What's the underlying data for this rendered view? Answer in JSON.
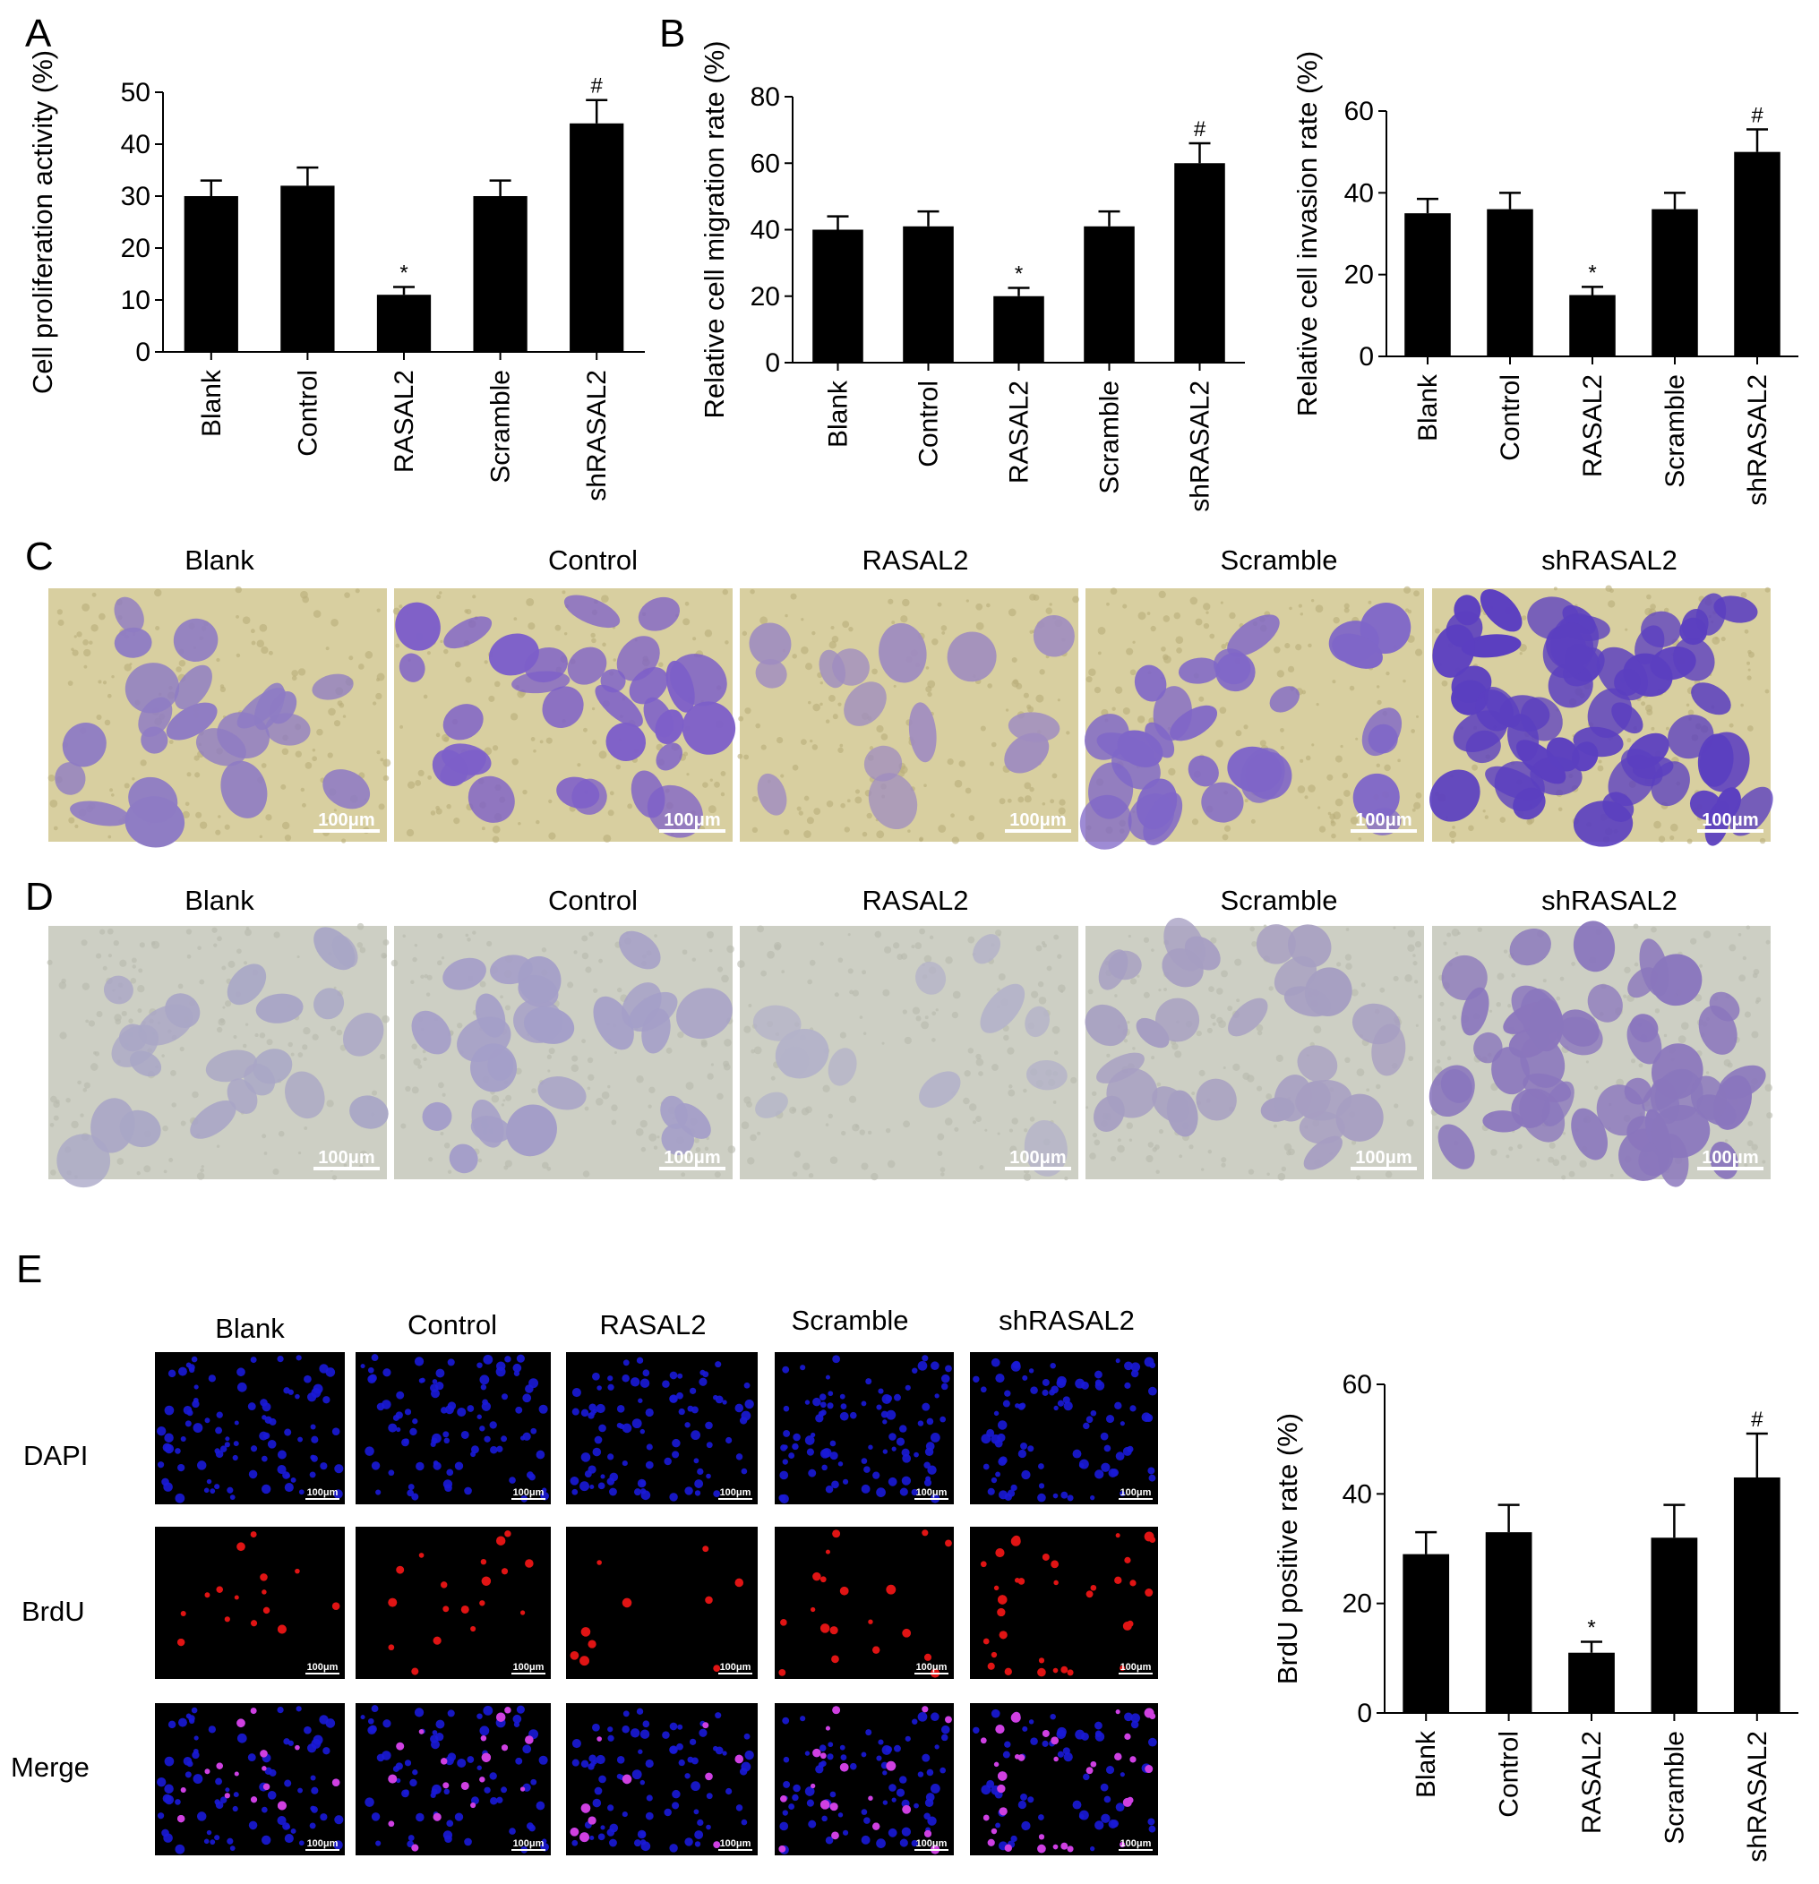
{
  "panels": {
    "A": "A",
    "B": "B",
    "C": "C",
    "D": "D",
    "E": "E"
  },
  "groups": [
    "Blank",
    "Control",
    "RASAL2",
    "Scramble",
    "shRASAL2"
  ],
  "scale_bar": "100μm",
  "micro": {
    "C": {
      "colors": [
        "#8e7bc4",
        "#7d5fc9",
        "#9f8cc0",
        "#7f66c8",
        "#5b3fc0"
      ],
      "bg": "#d8cfa0"
    },
    "D": {
      "colors": [
        "#a9a6c6",
        "#a49ec8",
        "#b4b3c9",
        "#a69ec2",
        "#8a76bd"
      ],
      "bg": "#cdcfc4"
    }
  },
  "panelE": {
    "row_labels": [
      "DAPI",
      "BrdU",
      "Merge"
    ],
    "colors": {
      "dapi": "#1a1ad8",
      "brdu": "#e01414",
      "merge": "#d040e0"
    }
  },
  "chart_data": [
    {
      "id": "A",
      "type": "bar",
      "categories": [
        "Blank",
        "Control",
        "RASAL2",
        "Scramble",
        "shRASAL2"
      ],
      "values": [
        30,
        32,
        11,
        30,
        44
      ],
      "errors": [
        3,
        3.5,
        1.5,
        3,
        4.5
      ],
      "annotations": [
        "",
        "",
        "*",
        "",
        "#"
      ],
      "ylabel": "Cell proliferation activity (%)",
      "ylim": [
        0,
        50
      ],
      "yticks": [
        0,
        10,
        20,
        30,
        40,
        50
      ],
      "bar_color": "#000000"
    },
    {
      "id": "B1",
      "type": "bar",
      "categories": [
        "Blank",
        "Control",
        "RASAL2",
        "Scramble",
        "shRASAL2"
      ],
      "values": [
        40,
        41,
        20,
        41,
        60
      ],
      "errors": [
        4,
        4.5,
        2.5,
        4.5,
        6
      ],
      "annotations": [
        "",
        "",
        "*",
        "",
        "#"
      ],
      "ylabel": "Relative cell migration rate (%)",
      "ylim": [
        0,
        80
      ],
      "yticks": [
        0,
        20,
        40,
        60,
        80
      ],
      "bar_color": "#000000"
    },
    {
      "id": "B2",
      "type": "bar",
      "categories": [
        "Blank",
        "Control",
        "RASAL2",
        "Scramble",
        "shRASAL2"
      ],
      "values": [
        35,
        36,
        15,
        36,
        50
      ],
      "errors": [
        3.5,
        4,
        2,
        4,
        5.5
      ],
      "annotations": [
        "",
        "",
        "*",
        "",
        "#"
      ],
      "ylabel": "Relative cell invasion rate (%)",
      "ylim": [
        0,
        60
      ],
      "yticks": [
        0,
        20,
        40,
        60
      ],
      "bar_color": "#000000"
    },
    {
      "id": "E",
      "type": "bar",
      "categories": [
        "Blank",
        "Control",
        "RASAL2",
        "Scramble",
        "shRASAL2"
      ],
      "values": [
        29,
        33,
        11,
        32,
        43
      ],
      "errors": [
        4,
        5,
        2,
        6,
        8
      ],
      "annotations": [
        "",
        "",
        "*",
        "",
        "#"
      ],
      "ylabel": "BrdU positive rate (%)",
      "ylim": [
        0,
        60
      ],
      "yticks": [
        0,
        20,
        40,
        60
      ],
      "bar_color": "#000000"
    }
  ]
}
